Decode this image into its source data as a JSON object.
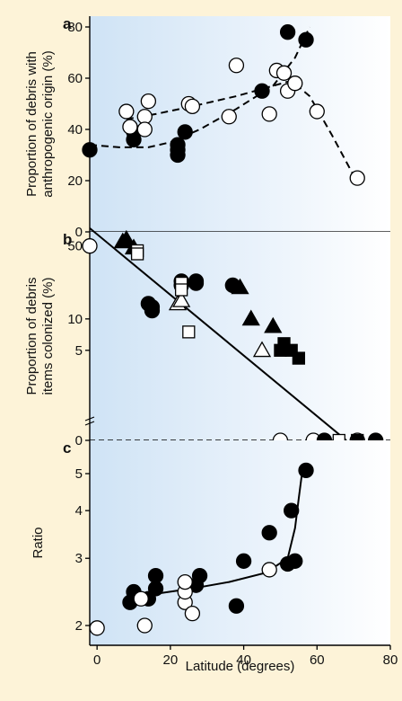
{
  "chart_data": [
    {
      "type": "scatter",
      "panel_label": "a",
      "ylabel_lines": [
        "Proportion of debris with",
        "anthropogenic origin (%)"
      ],
      "ylim": [
        0,
        80
      ],
      "yticks": [
        "0",
        "20",
        "40",
        "60",
        "80"
      ],
      "xlim": [
        -2,
        80
      ],
      "series": [
        {
          "marker": "filled-circle",
          "points": [
            [
              -2,
              32
            ],
            [
              10,
              39
            ],
            [
              10,
              36
            ],
            [
              22,
              34
            ],
            [
              22,
              32
            ],
            [
              22,
              30
            ],
            [
              24,
              39
            ],
            [
              45,
              55
            ],
            [
              52,
              78
            ],
            [
              57,
              75
            ]
          ]
        },
        {
          "marker": "open-circle",
          "points": [
            [
              8,
              47
            ],
            [
              9,
              41
            ],
            [
              13,
              45
            ],
            [
              13,
              40
            ],
            [
              14,
              51
            ],
            [
              25,
              50
            ],
            [
              26,
              49
            ],
            [
              36,
              45
            ],
            [
              38,
              65
            ],
            [
              47,
              46
            ],
            [
              49,
              63
            ],
            [
              51,
              62
            ],
            [
              52,
              55
            ],
            [
              54,
              58
            ],
            [
              60,
              47
            ],
            [
              71,
              21
            ]
          ]
        }
      ],
      "fits": [
        {
          "style": "dashed",
          "points": [
            [
              -2,
              34
            ],
            [
              6,
              33
            ],
            [
              14,
              33
            ],
            [
              20,
              35
            ],
            [
              28,
              40
            ],
            [
              38,
              48
            ],
            [
              48,
              57
            ],
            [
              54,
              68
            ],
            [
              58,
              80
            ]
          ]
        },
        {
          "style": "dashed",
          "points": [
            [
              8,
              44
            ],
            [
              16,
              46
            ],
            [
              26,
              49
            ],
            [
              38,
              53
            ],
            [
              48,
              57
            ],
            [
              53,
              59
            ],
            [
              58,
              53
            ],
            [
              64,
              38
            ],
            [
              70,
              22
            ]
          ]
        }
      ]
    },
    {
      "type": "scatter",
      "panel_label": "b",
      "ylabel_lines": [
        "Proportion of debris",
        "items colonized (%)"
      ],
      "yscale": "log",
      "yticks": [
        "0",
        "5",
        "10",
        "50"
      ],
      "xlim": [
        -2,
        80
      ],
      "series": [
        {
          "marker": "open-circle",
          "points": [
            [
              -2,
              50
            ],
            [
              50,
              0
            ],
            [
              59,
              0
            ],
            [
              71,
              0
            ]
          ]
        },
        {
          "marker": "filled-circle",
          "points": [
            [
              14,
              14
            ],
            [
              15,
              13
            ],
            [
              15,
              12
            ],
            [
              23,
              23
            ],
            [
              23,
              21
            ],
            [
              27,
              23
            ],
            [
              27,
              22
            ],
            [
              37,
              21
            ],
            [
              62,
              0
            ],
            [
              76,
              0
            ]
          ]
        },
        {
          "marker": "filled-triangle",
          "points": [
            [
              7,
              55
            ],
            [
              8,
              58
            ],
            [
              10,
              48
            ],
            [
              39,
              20
            ],
            [
              42,
              10
            ],
            [
              48,
              8.5
            ]
          ]
        },
        {
          "marker": "open-triangle",
          "points": [
            [
              22,
              14
            ],
            [
              23,
              15
            ],
            [
              45,
              5
            ]
          ]
        },
        {
          "marker": "open-square",
          "points": [
            [
              11,
              45
            ],
            [
              11,
              42
            ],
            [
              23,
              22
            ],
            [
              23,
              19
            ],
            [
              25,
              7.5
            ],
            [
              66,
              0
            ]
          ]
        },
        {
          "marker": "filled-square",
          "points": [
            [
              50,
              5
            ],
            [
              51,
              5.8
            ],
            [
              53,
              5
            ],
            [
              55,
              4.2
            ],
            [
              71,
              0
            ]
          ]
        }
      ],
      "fits": [
        {
          "style": "solid",
          "points": [
            [
              -2,
              74
            ],
            [
              68,
              0
            ]
          ]
        }
      ]
    },
    {
      "type": "scatter",
      "panel_label": "c",
      "ylabel_lines": [
        "Ratio"
      ],
      "yscale": "log",
      "ylim": [
        1.85,
        6
      ],
      "yticks": [
        "2",
        "3",
        "4",
        "5"
      ],
      "xlim": [
        -2,
        80
      ],
      "xlabel": "Latitude (degrees)",
      "xticks": [
        "0",
        "20",
        "40",
        "60",
        "80"
      ],
      "series": [
        {
          "marker": "filled-circle",
          "points": [
            [
              9,
              2.3
            ],
            [
              10,
              2.45
            ],
            [
              14,
              2.35
            ],
            [
              16,
              2.5
            ],
            [
              16,
              2.7
            ],
            [
              27,
              2.55
            ],
            [
              28,
              2.7
            ],
            [
              38,
              2.25
            ],
            [
              40,
              2.95
            ],
            [
              47,
              3.5
            ],
            [
              52,
              2.9
            ],
            [
              54,
              2.95
            ],
            [
              53,
              4.0
            ],
            [
              57,
              5.1
            ]
          ]
        },
        {
          "marker": "open-circle",
          "points": [
            [
              0,
              1.97
            ],
            [
              12,
              2.35
            ],
            [
              13,
              2.0
            ],
            [
              24,
              2.3
            ],
            [
              24,
              2.45
            ],
            [
              24,
              2.6
            ],
            [
              26,
              2.15
            ],
            [
              47,
              2.8
            ]
          ]
        }
      ],
      "fits": [
        {
          "style": "solid",
          "points": [
            [
              8,
              2.38
            ],
            [
              16,
              2.42
            ],
            [
              26,
              2.5
            ],
            [
              36,
              2.6
            ],
            [
              46,
              2.75
            ],
            [
              52,
              3.0
            ],
            [
              54,
              3.6
            ],
            [
              55,
              4.3
            ],
            [
              56,
              5.1
            ]
          ]
        }
      ]
    }
  ]
}
